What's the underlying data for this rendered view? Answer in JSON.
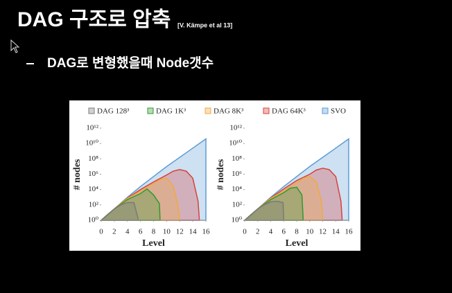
{
  "slide": {
    "title": "DAG 구조로 압축",
    "citation": "[V. Kämpe et al 13]",
    "bullet": "DAG로 변형했을때 Node갯수"
  },
  "chart_data": [
    {
      "type": "area",
      "xlabel": "Level",
      "ylabel": "# nodes",
      "log_y": true,
      "xlim": [
        0,
        16
      ],
      "xticks": [
        0,
        2,
        4,
        6,
        8,
        10,
        12,
        14,
        16
      ],
      "ylim": [
        1,
        1000000000000
      ],
      "yticks": [
        {
          "value": 1,
          "label": "10⁰"
        },
        {
          "value": 100,
          "label": "10²"
        },
        {
          "value": 10000,
          "label": "10⁴"
        },
        {
          "value": 1000000,
          "label": "10⁶"
        },
        {
          "value": 100000000,
          "label": "10⁸"
        },
        {
          "value": 10000000000,
          "label": "10¹⁰"
        },
        {
          "value": 1000000000000,
          "label": "10¹²"
        }
      ],
      "series": [
        {
          "name": "DAG 128³",
          "color": "#7a7a7a",
          "x": [
            0,
            1,
            2,
            3,
            4,
            5,
            5.7
          ],
          "values": [
            1,
            6,
            30,
            100,
            200,
            200,
            1
          ]
        },
        {
          "name": "DAG 1K³",
          "color": "#2e9a2e",
          "x": [
            0,
            2,
            4,
            6,
            7,
            8,
            8.9,
            9
          ],
          "values": [
            1,
            30,
            500,
            3000,
            12000,
            2000,
            150,
            1
          ]
        },
        {
          "name": "DAG 8K³",
          "color": "#f2a93b",
          "x": [
            0,
            2,
            4,
            6,
            8,
            9,
            10,
            11,
            11.7,
            12
          ],
          "values": [
            1,
            30,
            700,
            6000,
            60000,
            200000,
            300000,
            30000,
            100,
            1
          ]
        },
        {
          "name": "DAG 64K³",
          "color": "#d9403a",
          "x": [
            0,
            2,
            4,
            6,
            8,
            10,
            11,
            12,
            13,
            14,
            14.8,
            15
          ],
          "values": [
            1,
            30,
            800,
            10000,
            100000,
            800000,
            2500000,
            4000000,
            2500000,
            300000,
            300,
            1
          ]
        },
        {
          "name": "SVO",
          "color": "#5b9bd5",
          "x": [
            0,
            2,
            4,
            6,
            8,
            10,
            12,
            14,
            16
          ],
          "values": [
            1,
            30,
            1000,
            25000,
            500000,
            10000000,
            160000000,
            2500000000,
            40000000000
          ]
        }
      ]
    },
    {
      "type": "area",
      "xlabel": "Level",
      "ylabel": "# nodes",
      "log_y": true,
      "xlim": [
        0,
        16
      ],
      "xticks": [
        0,
        2,
        4,
        6,
        8,
        10,
        12,
        14,
        16
      ],
      "ylim": [
        1,
        1000000000000
      ],
      "yticks": [
        {
          "value": 1,
          "label": "10⁰"
        },
        {
          "value": 100,
          "label": "10²"
        },
        {
          "value": 10000,
          "label": "10⁴"
        },
        {
          "value": 1000000,
          "label": "10⁶"
        },
        {
          "value": 100000000,
          "label": "10⁸"
        },
        {
          "value": 10000000000,
          "label": "10¹⁰"
        },
        {
          "value": 1000000000000,
          "label": "10¹²"
        }
      ],
      "series": [
        {
          "color": "#7a7a7a",
          "x": [
            0,
            1,
            2,
            3,
            4,
            5,
            5.9,
            6
          ],
          "values": [
            1,
            6,
            30,
            100,
            250,
            300,
            200,
            1
          ]
        },
        {
          "color": "#2e9a2e",
          "x": [
            0,
            2,
            4,
            6,
            7,
            8,
            8.8,
            9
          ],
          "values": [
            1,
            30,
            500,
            4000,
            15000,
            20000,
            2000,
            1
          ]
        },
        {
          "color": "#f2a93b",
          "x": [
            0,
            2,
            4,
            6,
            8,
            9,
            10,
            11,
            11.8,
            12
          ],
          "values": [
            1,
            30,
            700,
            7000,
            80000,
            300000,
            500000,
            100000,
            300,
            1
          ]
        },
        {
          "color": "#d9403a",
          "x": [
            0,
            2,
            4,
            6,
            8,
            10,
            11,
            12,
            13,
            14,
            14.8,
            15
          ],
          "values": [
            1,
            30,
            800,
            12000,
            150000,
            1000000,
            3500000,
            6000000,
            4000000,
            500000,
            300,
            1
          ]
        },
        {
          "color": "#5b9bd5",
          "x": [
            0,
            2,
            4,
            6,
            8,
            10,
            12,
            14,
            16
          ],
          "values": [
            1,
            30,
            1000,
            25000,
            500000,
            10000000,
            160000000,
            2500000000,
            40000000000
          ]
        }
      ]
    }
  ]
}
